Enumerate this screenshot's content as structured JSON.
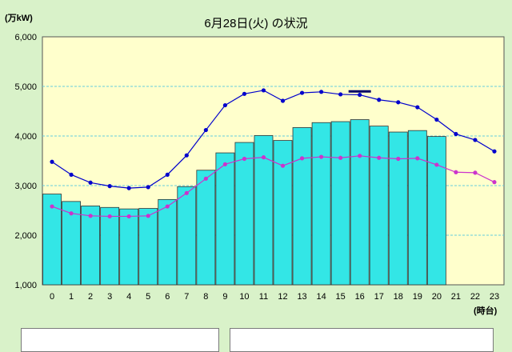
{
  "chart_data": {
    "type": "bar",
    "title": "6月28日(火) の状況",
    "ylabel": "(万kW)",
    "xlabel": "(時台)",
    "ylim": [
      1000,
      6000
    ],
    "yticks": [
      "1,000",
      "2,000",
      "3,000",
      "4,000",
      "5,000",
      "6,000"
    ],
    "ytick_values": [
      1000,
      2000,
      3000,
      4000,
      5000,
      6000
    ],
    "categories": [
      "0",
      "1",
      "2",
      "3",
      "4",
      "5",
      "6",
      "7",
      "8",
      "9",
      "10",
      "11",
      "12",
      "13",
      "14",
      "15",
      "16",
      "17",
      "18",
      "19",
      "20",
      "21",
      "22",
      "23"
    ],
    "bars": {
      "values": [
        2830,
        2680,
        2590,
        2560,
        2530,
        2540,
        2720,
        2980,
        3310,
        3660,
        3870,
        4010,
        3910,
        4170,
        4270,
        4290,
        4330,
        4200,
        4080,
        4110,
        3990,
        null,
        null,
        null
      ],
      "color": "#33e6e6"
    },
    "series": [
      {
        "values": [
          3480,
          3220,
          3060,
          2990,
          2950,
          2970,
          3220,
          3610,
          4120,
          4620,
          4850,
          4920,
          4710,
          4870,
          4890,
          4840,
          4830,
          4730,
          4680,
          4580,
          4330,
          4040,
          3920,
          3690
        ],
        "color": "#0000cc"
      },
      {
        "values": [
          2580,
          2440,
          2390,
          2380,
          2380,
          2390,
          2580,
          2850,
          3140,
          3430,
          3540,
          3570,
          3400,
          3550,
          3580,
          3560,
          3600,
          3560,
          3540,
          3550,
          3420,
          3270,
          3260,
          3070
        ],
        "color": "#cc33cc"
      }
    ],
    "peak_marker": {
      "x": "16",
      "value": 4900,
      "color": "#000066"
    },
    "grid": true,
    "plot_background": "#ffffcc",
    "page_background": "#d9f2c9"
  }
}
